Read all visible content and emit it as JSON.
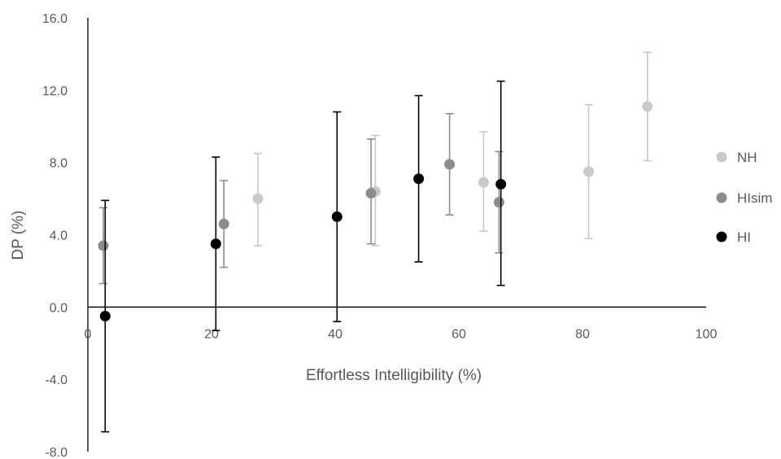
{
  "chart_data": {
    "type": "scatter",
    "title": "",
    "xlabel": "Effortless Intelligibility (%)",
    "ylabel": "DP (%)",
    "xlim": [
      0,
      100
    ],
    "ylim": [
      -8,
      16
    ],
    "x_ticks": [
      "0",
      "20",
      "40",
      "60",
      "80",
      "100"
    ],
    "y_ticks": [
      "-8.0",
      "-4.0",
      "0.0",
      "4.0",
      "8.0",
      "12.0",
      "16.0"
    ],
    "grid": false,
    "legend_position": "right",
    "series": [
      {
        "name": "NH",
        "color": "#c9c9c9",
        "points": [
          {
            "x": 27.5,
            "y": 6.0,
            "err_low": 3.4,
            "err_high": 8.5
          },
          {
            "x": 46.5,
            "y": 6.4,
            "err_low": 3.4,
            "err_high": 9.5
          },
          {
            "x": 64.0,
            "y": 6.9,
            "err_low": 4.2,
            "err_high": 9.7
          },
          {
            "x": 81.0,
            "y": 7.5,
            "err_low": 3.8,
            "err_high": 11.2
          },
          {
            "x": 90.5,
            "y": 11.1,
            "err_low": 8.1,
            "err_high": 14.1
          }
        ]
      },
      {
        "name": "HIsim",
        "color": "#8c8c8c",
        "points": [
          {
            "x": 2.5,
            "y": 3.4,
            "err_low": 1.3,
            "err_high": 5.5
          },
          {
            "x": 22.0,
            "y": 4.6,
            "err_low": 2.2,
            "err_high": 7.0
          },
          {
            "x": 45.8,
            "y": 6.3,
            "err_low": 3.5,
            "err_high": 9.3
          },
          {
            "x": 58.5,
            "y": 7.9,
            "err_low": 5.1,
            "err_high": 10.7
          },
          {
            "x": 66.5,
            "y": 5.8,
            "err_low": 3.0,
            "err_high": 8.6
          }
        ]
      },
      {
        "name": "HI",
        "color": "#000000",
        "points": [
          {
            "x": 2.8,
            "y": -0.5,
            "err_low": -6.9,
            "err_high": 5.9
          },
          {
            "x": 20.7,
            "y": 3.5,
            "err_low": -1.3,
            "err_high": 8.3
          },
          {
            "x": 40.3,
            "y": 5.0,
            "err_low": -0.8,
            "err_high": 10.8
          },
          {
            "x": 53.5,
            "y": 7.1,
            "err_low": 2.5,
            "err_high": 11.7
          },
          {
            "x": 66.8,
            "y": 6.8,
            "err_low": 1.2,
            "err_high": 12.5
          }
        ]
      }
    ]
  }
}
